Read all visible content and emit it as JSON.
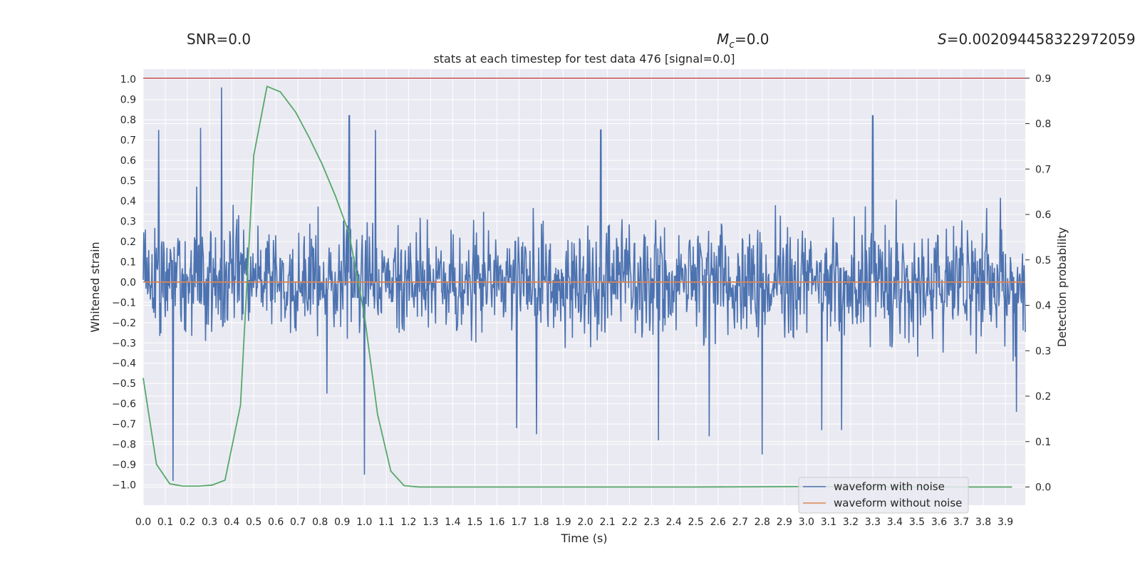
{
  "header": {
    "snr_label": "SNR=0.0",
    "mc_symbol": "M",
    "mc_subscript": "c",
    "mc_value": "=0.0",
    "s_symbol": "S",
    "s_value": "=0.002094458322972059"
  },
  "colors": {
    "plot_bg": "#eaeaf2",
    "grid": "#ffffff",
    "noise": "#4c72b0",
    "clean": "#dd8452",
    "prob": "#55a868",
    "threshold": "#c44e52",
    "text": "#262626"
  },
  "chart_data": {
    "type": "line",
    "title": "stats at each timestep for test data 476 [signal=0.0]",
    "xlabel": "Time (s)",
    "ylabel": "Whitened strain",
    "ylabel_right": "Detection probability",
    "xlim": [
      0.0,
      3.99
    ],
    "ylim": [
      -1.1,
      1.05
    ],
    "ylim_right": [
      -0.04,
      0.92
    ],
    "x_ticks": [
      0.0,
      0.1,
      0.2,
      0.3,
      0.4,
      0.5,
      0.6,
      0.7,
      0.8,
      0.9,
      1.0,
      1.1,
      1.2,
      1.3,
      1.4,
      1.5,
      1.6,
      1.7,
      1.8,
      1.9,
      2.0,
      2.1,
      2.2,
      2.3,
      2.4,
      2.5,
      2.6,
      2.7,
      2.8,
      2.9,
      3.0,
      3.1,
      3.2,
      3.3,
      3.4,
      3.5,
      3.6,
      3.7,
      3.8,
      3.9
    ],
    "x_tick_labels": [
      "0.0",
      "0.1",
      "0.2",
      "0.3",
      "0.4",
      "0.5",
      "0.6",
      "0.7",
      "0.8",
      "0.9",
      "1.0",
      "1.1",
      "1.2",
      "1.3",
      "1.4",
      "1.5",
      "1.6",
      "1.7",
      "1.8",
      "1.9",
      "2.0",
      "2.1",
      "2.2",
      "2.3",
      "2.4",
      "2.5",
      "2.6",
      "2.7",
      "2.8",
      "2.9",
      "3.0",
      "3.1",
      "3.2",
      "3.3",
      "3.4",
      "3.5",
      "3.6",
      "3.7",
      "3.8",
      "3.9"
    ],
    "y_ticks": [
      1.0,
      0.9,
      0.8,
      0.7,
      0.6,
      0.5,
      0.4,
      0.3,
      0.2,
      0.1,
      0.0,
      -0.1,
      -0.2,
      -0.3,
      -0.4,
      -0.5,
      -0.6,
      -0.7,
      -0.8,
      -0.9,
      -1.0
    ],
    "y_tick_labels": [
      "1.0",
      "0.9",
      "0.8",
      "0.7",
      "0.6",
      "0.5",
      "0.4",
      "0.3",
      "0.2",
      "0.1",
      "0.0",
      "−0.1",
      "−0.2",
      "−0.3",
      "−0.4",
      "−0.5",
      "−0.6",
      "−0.7",
      "−0.8",
      "−0.9",
      "−1.0"
    ],
    "y_ticks_right": [
      0.9,
      0.8,
      0.7,
      0.6,
      0.5,
      0.4,
      0.3,
      0.2,
      0.1,
      0.0
    ],
    "y_tick_labels_right": [
      "0.9",
      "0.8",
      "0.7",
      "0.6",
      "0.5",
      "0.4",
      "0.3",
      "0.2",
      "0.1",
      "0.0"
    ],
    "series": [
      {
        "name": "waveform with noise",
        "axis": "left",
        "note": "dense noise trace spanning roughly -1.0 to 0.96 whitened strain",
        "noise_amplitude": 0.26,
        "x_range": [
          0.0,
          3.99
        ],
        "samples": 1600,
        "spikes": [
          {
            "x": 0.355,
            "y": 0.96
          },
          {
            "x": 0.135,
            "y": -0.98
          },
          {
            "x": 0.932,
            "y": 0.82
          },
          {
            "x": 1.0,
            "y": -0.95
          },
          {
            "x": 3.3,
            "y": 0.82
          },
          {
            "x": 2.8,
            "y": -0.85
          },
          {
            "x": 2.33,
            "y": -0.78
          },
          {
            "x": 2.56,
            "y": -0.76
          },
          {
            "x": 0.26,
            "y": 0.76
          },
          {
            "x": 0.07,
            "y": 0.75
          },
          {
            "x": 2.07,
            "y": 0.75
          },
          {
            "x": 1.05,
            "y": 0.75
          },
          {
            "x": 1.69,
            "y": -0.72
          },
          {
            "x": 3.16,
            "y": -0.73
          },
          {
            "x": 3.07,
            "y": -0.73
          },
          {
            "x": 1.78,
            "y": -0.75
          },
          {
            "x": 0.83,
            "y": -0.55
          },
          {
            "x": 3.95,
            "y": -0.64
          }
        ]
      },
      {
        "name": "waveform without noise",
        "axis": "left",
        "x": [
          0.0,
          3.99
        ],
        "y": [
          0.0,
          0.0
        ]
      },
      {
        "name": "Detection probability",
        "axis": "right",
        "x": [
          0.0,
          0.06,
          0.12,
          0.18,
          0.25,
          0.31,
          0.37,
          0.44,
          0.5,
          0.56,
          0.62,
          0.69,
          0.75,
          0.81,
          0.87,
          0.93,
          1.0,
          1.06,
          1.12,
          1.18,
          1.25,
          1.5,
          2.0,
          2.5,
          3.0,
          3.5,
          3.93
        ],
        "y": [
          0.24,
          0.05,
          0.007,
          0.002,
          0.002,
          0.004,
          0.015,
          0.18,
          0.73,
          0.882,
          0.87,
          0.825,
          0.77,
          0.71,
          0.64,
          0.56,
          0.38,
          0.16,
          0.035,
          0.003,
          0.0,
          0.0,
          0.0,
          0.0,
          0.001,
          0.0,
          0.0
        ]
      },
      {
        "name": "threshold",
        "axis": "right",
        "x": [
          0.0,
          3.99
        ],
        "y": [
          0.9,
          0.9
        ]
      }
    ],
    "legend": {
      "placement": "lower-right",
      "entries": [
        "waveform with noise",
        "waveform without noise"
      ]
    },
    "grid": true
  }
}
